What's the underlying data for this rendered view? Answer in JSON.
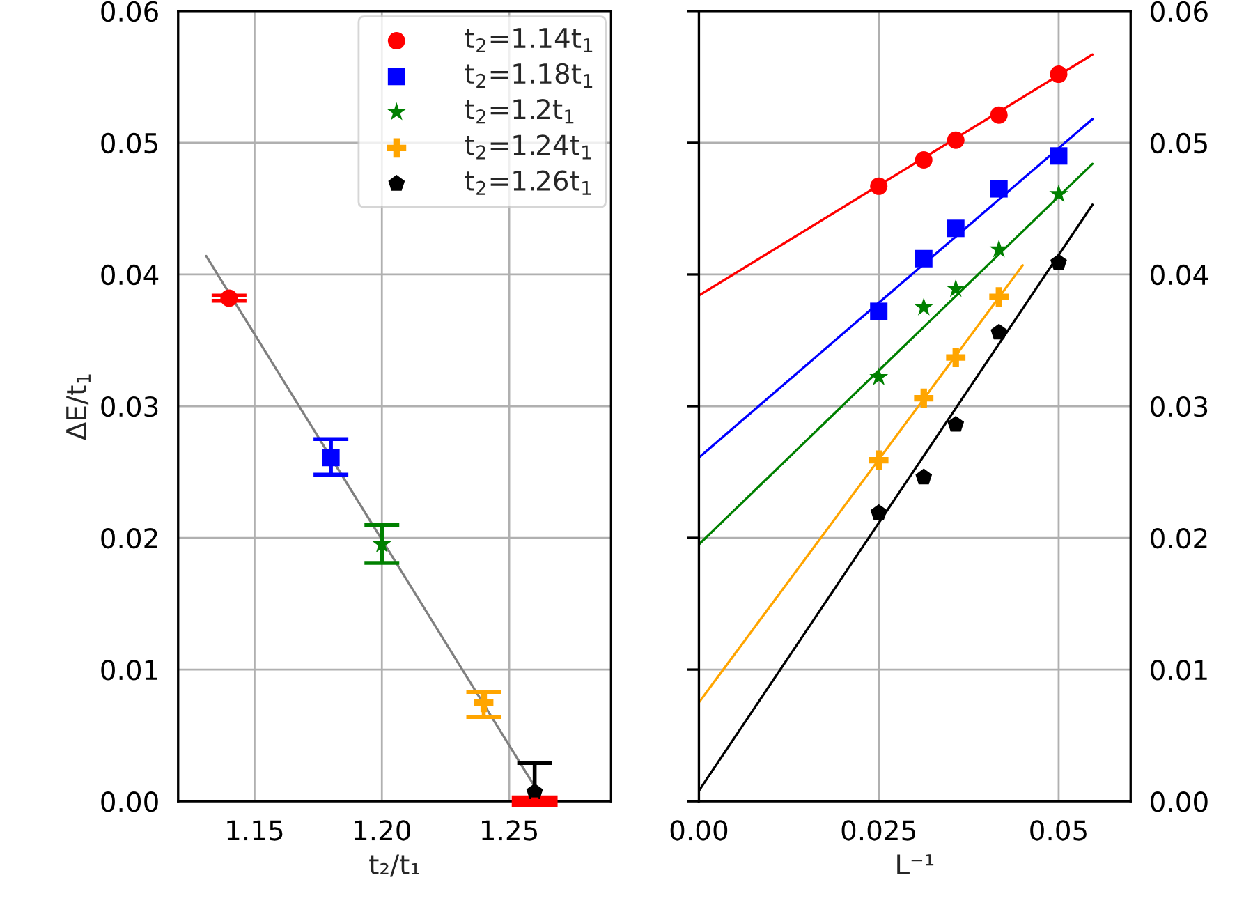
{
  "chart_data": [
    {
      "type": "scatter",
      "xlabel": "t₂/t₁",
      "ylabel": "ΔE/t$_{1}$",
      "xlim": [
        1.12,
        1.29
      ],
      "xticks": [
        1.15,
        {
          "value": 1.2,
          "label": "1.20"
        },
        1.25
      ],
      "ylim": [
        0,
        0.06
      ],
      "yticks": [
        {
          "value": 0,
          "label": "0.00"
        },
        0.01,
        0.02,
        0.03,
        0.04,
        0.05,
        0.06
      ],
      "grid": true,
      "legend": "top right",
      "series": [
        {
          "name": "t$_{2}$=1.14t$_{1}$",
          "color": "#ff0000",
          "marker": "circle",
          "x": [
            1.14
          ],
          "values": [
            0.0382
          ],
          "errors": [
            0.0002
          ]
        },
        {
          "name": "t$_{2}$=1.18t$_{1}$",
          "color": "#0000ff",
          "marker": "square",
          "x": [
            1.18
          ],
          "values": [
            0.0261
          ],
          "errors": [
            [
              0.0248,
              0.0275
            ]
          ]
        },
        {
          "name": "t$_{2}$=1.2t$_{1}$",
          "color": "#008000",
          "marker": "star",
          "x": [
            1.2
          ],
          "values": [
            0.0195
          ],
          "errors": [
            [
              0.0181,
              0.021
            ]
          ]
        },
        {
          "name": "t$_{2}$=1.24t$_{1}$",
          "color": "#ffa500",
          "marker": "cross",
          "x": [
            1.24
          ],
          "values": [
            0.0075
          ],
          "errors": [
            [
              0.0064,
              0.0083
            ]
          ]
        },
        {
          "name": "t$_{2}$=1.26t$_{1}$",
          "color": "#000000",
          "x": [
            1.26
          ],
          "values": [
            0.0007
          ],
          "errors": [
            [
              0,
              0.0029
            ]
          ]
        },
        {
          "type": "line",
          "color": "#808080",
          "marker": "none",
          "x": [
            1.131,
            1.262
          ],
          "values": [
            0.0414,
            0.0005
          ]
        },
        {
          "color": "#ff0000",
          "marker": "square",
          "x": [
            1.26
          ],
          "values": [
            0
          ],
          "xerrors": [
            0.009
          ]
        }
      ]
    },
    {
      "type": "scatter",
      "xlabel": "L⁻¹",
      "xlim": [
        0,
        0.06
      ],
      "xticks": [
        {
          "value": 0,
          "label": "0.00"
        },
        0.025,
        0.05
      ],
      "ylim": [
        0,
        0.06
      ],
      "yticks": [
        {
          "value": 0,
          "label": "0.00"
        },
        0.01,
        0.02,
        0.03,
        0.04,
        0.05,
        0.06
      ],
      "grid": true,
      "series": [
        {
          "color": "#ff0000",
          "marker": "circle",
          "x": [
            0.025,
            0.03125,
            0.0357,
            0.0417,
            0.05
          ],
          "values": [
            0.0467,
            0.0487,
            0.0502,
            0.0521,
            0.0552
          ]
        },
        {
          "color": "#0000ff",
          "marker": "square",
          "x": [
            0.025,
            0.03125,
            0.0357,
            0.0417,
            0.05
          ],
          "values": [
            0.0372,
            0.0412,
            0.0435,
            0.0465,
            0.049
          ]
        },
        {
          "color": "#008000",
          "marker": "star",
          "x": [
            0.025,
            0.03125,
            0.0357,
            0.0417,
            0.05
          ],
          "values": [
            0.0322,
            0.0375,
            0.0389,
            0.0419,
            0.0461
          ]
        },
        {
          "color": "#ffa500",
          "marker": "cross",
          "x": [
            0.025,
            0.03125,
            0.0357,
            0.0417
          ],
          "values": [
            0.0259,
            0.0306,
            0.0337,
            0.0383
          ]
        },
        {
          "color": "#000000",
          "x": [
            0.025,
            0.03125,
            0.0357,
            0.0417,
            0.05
          ],
          "values": [
            0.0219,
            0.0246,
            0.0286,
            0.0356,
            0.0409
          ]
        },
        {
          "type": "line",
          "color": "#ff0000",
          "marker": "none",
          "x": [
            0,
            0.0547
          ],
          "values": [
            0.0384,
            0.0567
          ]
        },
        {
          "type": "line",
          "color": "#0000ff",
          "marker": "none",
          "x": [
            0,
            0.0547
          ],
          "values": [
            0.0261,
            0.0518
          ]
        },
        {
          "type": "line",
          "color": "#008000",
          "marker": "none",
          "x": [
            0,
            0.0547
          ],
          "values": [
            0.0195,
            0.0484
          ]
        },
        {
          "type": "line",
          "color": "#ffa500",
          "marker": "none",
          "x": [
            0,
            0.045
          ],
          "values": [
            0.0075,
            0.0407
          ]
        },
        {
          "type": "line",
          "color": "#000000",
          "marker": "none",
          "x": [
            0,
            0.0547
          ],
          "values": [
            0.0008,
            0.0453
          ]
        }
      ]
    }
  ]
}
